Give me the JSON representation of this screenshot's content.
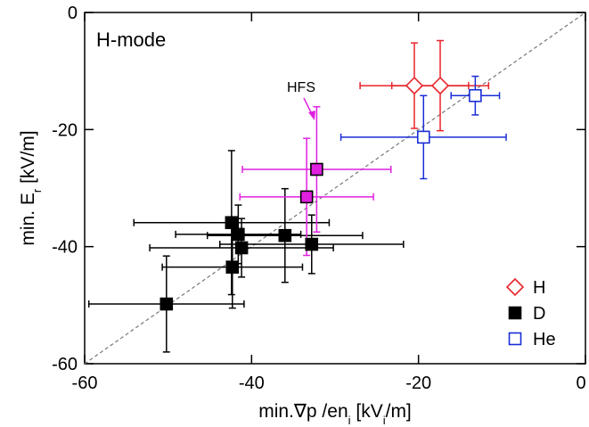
{
  "chart_data": {
    "type": "scatter",
    "title": "H-mode",
    "xlabel": [
      "min.∇p /en",
      "i",
      " [kV",
      "i",
      "/m]"
    ],
    "ylabel": [
      "min. E",
      "r",
      " [kV/m]"
    ],
    "xlim": [
      -60,
      0
    ],
    "ylim": [
      -60,
      0
    ],
    "xticks": [
      -60,
      -40,
      -20,
      0
    ],
    "yticks": [
      -60,
      -40,
      -20,
      0
    ],
    "diagonal": true,
    "annotation": "HFS",
    "series": [
      {
        "name": "H",
        "color": "#e8242a",
        "marker": "diamond",
        "filled": false,
        "x": [
          -20.5,
          -17.4
        ],
        "y": [
          -12.5,
          -12.5
        ],
        "xerr": [
          6.5,
          5.8
        ],
        "yerr": [
          7.3,
          7.7
        ]
      },
      {
        "name": "D",
        "color": "#000000",
        "marker": "square",
        "filled": true,
        "x": [
          -42.4,
          -41.6,
          -41.2,
          -36.0,
          -32.8,
          -42.3,
          -50.2
        ],
        "y": [
          -35.9,
          -37.9,
          -40.2,
          -38.1,
          -39.6,
          -43.5,
          -49.8
        ],
        "xerr": [
          11.7,
          7.5,
          11,
          9.3,
          11,
          8.4,
          9.3
        ],
        "yerr": [
          12.3,
          5,
          5,
          8,
          5,
          7,
          8.2
        ]
      },
      {
        "color": "#e020e0",
        "marker": "square",
        "filled": true,
        "x": [
          -32.2,
          -33.4
        ],
        "y": [
          -26.8,
          -31.5
        ],
        "xerr": [
          8.9,
          8
        ],
        "yerr": [
          10.7,
          10
        ]
      },
      {
        "name": "He",
        "color": "#1a2dd6",
        "marker": "square",
        "filled": false,
        "x": [
          -13.2,
          -19.4
        ],
        "y": [
          -14.2,
          -21.3
        ],
        "xerr": [
          2.9,
          9.9
        ],
        "yerr": [
          3.3,
          7.1
        ]
      }
    ]
  }
}
